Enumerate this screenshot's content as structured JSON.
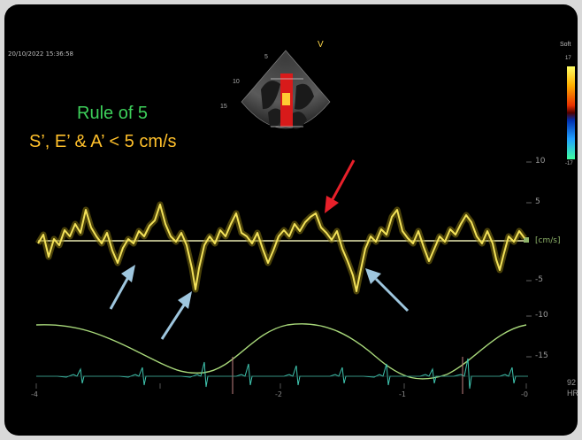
{
  "timestamp": "20/10/2022 15:36:58",
  "title_line1": "Rule of 5",
  "title_line2": "S’, E’ & A’ < 5 cm/s",
  "colorbar": {
    "label": "Soft",
    "top": "17",
    "bottom": "-17"
  },
  "velocity_scale": {
    "labels": [
      "10",
      "5",
      "[cm/s]",
      "-5",
      "-10",
      "-15"
    ]
  },
  "time_axis": {
    "labels": [
      "-4",
      "-2",
      "-1",
      "-0"
    ]
  },
  "heart_rate": {
    "value": "92",
    "label": "HR"
  },
  "inset": {
    "label": "V",
    "depth_labels": [
      "5",
      "10",
      "15"
    ]
  },
  "arrows": [
    {
      "color": "#e8202a",
      "target": "peak S’"
    },
    {
      "color": "#9ec6de",
      "target": "E’"
    },
    {
      "color": "#9ec6de",
      "target": "A’"
    },
    {
      "color": "#9ec6de",
      "target": "E’"
    }
  ],
  "colors": {
    "title_green": "#3dcf5a",
    "title_yellow": "#ffc02b",
    "trace": "#f2e15a",
    "resp": "#a8d87a",
    "ecg": "#3fc6b0"
  }
}
